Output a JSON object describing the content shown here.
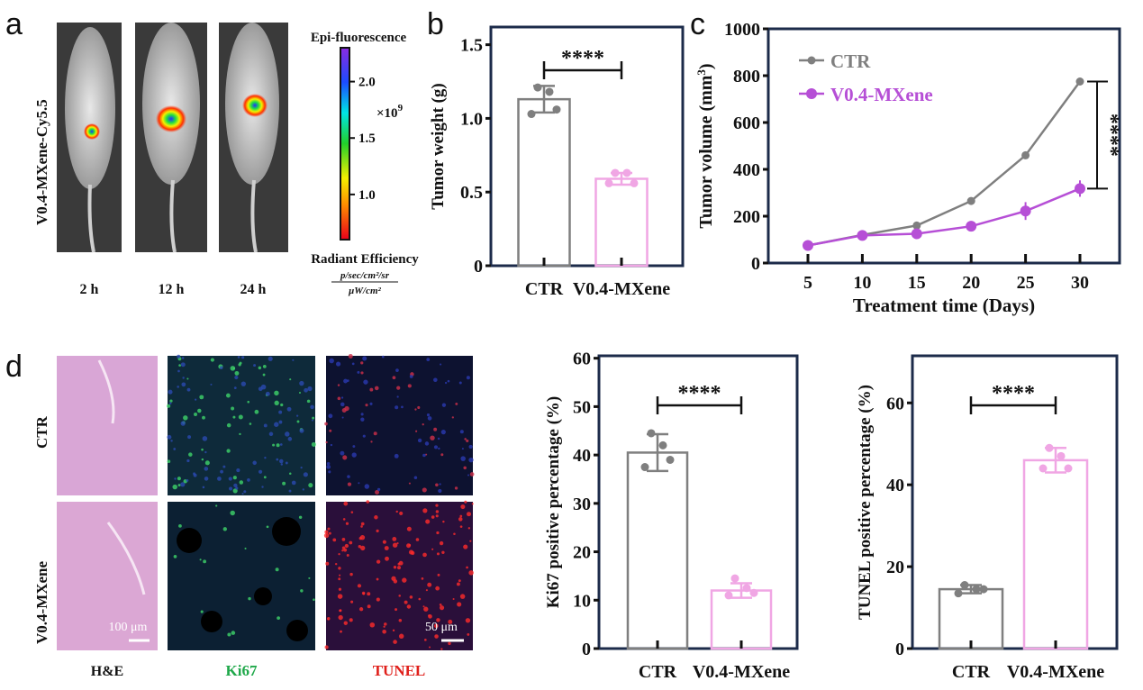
{
  "panel_labels": [
    "a",
    "b",
    "c",
    "d"
  ],
  "panel_a": {
    "probe_label": "V0.4-MXene-Cy5.5",
    "timepoints": [
      "2 h",
      "12 h",
      "24 h"
    ],
    "colorbar": {
      "title": "Epi-fluorescence",
      "ticks": [
        "2.0",
        "1.5",
        "1.0"
      ],
      "tick_values": [
        2.0,
        1.5,
        1.0
      ],
      "range": [
        0.6,
        2.3
      ],
      "multiplier": "×10",
      "multiplier_exp": "9",
      "unit_title": "Radiant Efficiency",
      "unit_numerator": "p/sec/cm²/sr",
      "unit_denominator": "μW/cm²"
    }
  },
  "panel_d_images": {
    "rows": [
      "CTR",
      "V0.4-MXene"
    ],
    "columns": [
      "H&E",
      "Ki67",
      "TUNEL"
    ],
    "column_colors": [
      "#111111",
      "#1fa84a",
      "#e0201b"
    ],
    "scalebars": [
      "100 μm",
      "50 μm"
    ]
  },
  "colors": {
    "ctr": "#7f7f7f",
    "treat_bar": "#f0a6e4",
    "treat_line": "#b64fd6",
    "frame": "#1c2b4a"
  },
  "chart_data": [
    {
      "id": "tumor-weight",
      "type": "bar",
      "categories": [
        "CTR",
        "V0.4-MXene"
      ],
      "values": [
        1.13,
        0.59
      ],
      "errors": [
        0.09,
        0.04
      ],
      "points": [
        [
          1.21,
          1.18,
          1.03,
          1.06
        ],
        [
          0.63,
          0.63,
          0.56,
          0.56
        ]
      ],
      "ylabel": "Tumor weight (g)",
      "ylim": [
        0,
        1.62
      ],
      "yticks": [
        0,
        0.5,
        1.0,
        1.5
      ],
      "ytick_labels": [
        "0",
        "0.5",
        "1.0",
        "1.5"
      ],
      "significance": "****"
    },
    {
      "id": "tumor-volume",
      "type": "line",
      "x": [
        5,
        10,
        15,
        20,
        25,
        30
      ],
      "xtick_labels": [
        "5",
        "10",
        "15",
        "20",
        "25",
        "30"
      ],
      "series": [
        {
          "name": "CTR",
          "values": [
            75,
            120,
            160,
            265,
            460,
            775
          ],
          "errors": [
            5,
            5,
            5,
            8,
            8,
            10
          ]
        },
        {
          "name": "V0.4-MXene",
          "values": [
            75,
            118,
            125,
            157,
            222,
            318
          ],
          "errors": [
            5,
            6,
            8,
            10,
            38,
            35
          ]
        }
      ],
      "xlabel": "Treatment time (Days)",
      "ylabel": "Tumor volume (mm",
      "ylabel_sup": "3",
      "ylabel_end": ")",
      "xlim": [
        2,
        33
      ],
      "ylim": [
        0,
        1000
      ],
      "yticks": [
        0,
        200,
        400,
        600,
        800,
        1000
      ],
      "ytick_labels": [
        "0",
        "200",
        "400",
        "600",
        "800",
        "1000"
      ],
      "legend": "top-left",
      "significance": "****"
    },
    {
      "id": "ki67",
      "type": "bar",
      "categories": [
        "CTR",
        "V0.4-MXene"
      ],
      "values": [
        40.5,
        12
      ],
      "errors": [
        3.8,
        1.5
      ],
      "points": [
        [
          44.5,
          42,
          37.5,
          39
        ],
        [
          14.5,
          12.5,
          11,
          11.5
        ]
      ],
      "ylabel": "Ki67 positive percentage (%)",
      "ylim": [
        0,
        60.5
      ],
      "yticks": [
        0,
        10,
        20,
        30,
        40,
        50,
        60
      ],
      "ytick_labels": [
        "0",
        "10",
        "20",
        "30",
        "40",
        "50",
        "60"
      ],
      "significance": "****"
    },
    {
      "id": "tunel",
      "type": "bar",
      "categories": [
        "CTR",
        "V0.4-MXene"
      ],
      "values": [
        14.5,
        46
      ],
      "errors": [
        1.0,
        3.0
      ],
      "points": [
        [
          15.5,
          14.5,
          13.5,
          14.5
        ],
        [
          49,
          47,
          44,
          44
        ]
      ],
      "ylabel": "TUNEL positive percentage (%)",
      "ylim": [
        0,
        71.5
      ],
      "yticks": [
        0,
        20,
        40,
        60
      ],
      "ytick_labels": [
        "0",
        "20",
        "40",
        "60"
      ],
      "significance": "****"
    }
  ]
}
